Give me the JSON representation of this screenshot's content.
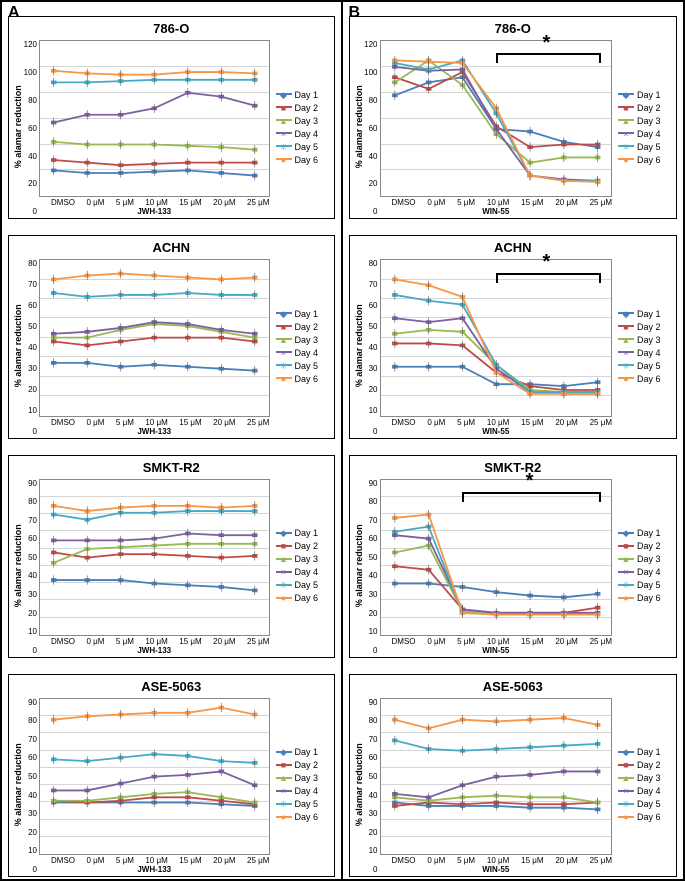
{
  "panel_labels": [
    "A",
    "B"
  ],
  "ylabel": "% alamar reduction",
  "xcats": [
    "DMSO",
    "0 μM",
    "5 μM",
    "10 μM",
    "15 μM",
    "20 μM",
    "25 μM"
  ],
  "legend_labels": [
    "Day 1",
    "Day 2",
    "Day 3",
    "Day 4",
    "Day 5",
    "Day 6"
  ],
  "colors": {
    "day1": "#4a7ebb",
    "day2": "#be4b48",
    "day3": "#98b954",
    "day4": "#7d60a0",
    "day5": "#46aac5",
    "day6": "#f79646"
  },
  "markers": {
    "day1": "◆",
    "day2": "■",
    "day3": "▲",
    "day4": "×",
    "day5": "✳",
    "day6": "●"
  },
  "columns": [
    {
      "xlabel": "JWH-133",
      "charts": [
        {
          "title": "786-O",
          "ymax": 120,
          "ystep": 20,
          "sig": null,
          "series": {
            "day1": [
              20,
              18,
              18,
              19,
              20,
              18,
              16
            ],
            "day2": [
              28,
              26,
              24,
              25,
              26,
              26,
              26
            ],
            "day3": [
              42,
              40,
              40,
              40,
              39,
              38,
              36
            ],
            "day4": [
              57,
              63,
              63,
              68,
              80,
              77,
              70
            ],
            "day5": [
              88,
              88,
              89,
              90,
              90,
              90,
              90
            ],
            "day6": [
              97,
              95,
              94,
              94,
              96,
              96,
              95
            ]
          }
        },
        {
          "title": "ACHN",
          "ymax": 80,
          "ystep": 10,
          "sig": null,
          "series": {
            "day1": [
              27,
              27,
              25,
              26,
              25,
              24,
              23
            ],
            "day2": [
              38,
              36,
              38,
              40,
              40,
              40,
              38
            ],
            "day3": [
              40,
              40,
              44,
              47,
              46,
              43,
              40
            ],
            "day4": [
              42,
              43,
              45,
              48,
              47,
              44,
              42
            ],
            "day5": [
              63,
              61,
              62,
              62,
              63,
              62,
              62
            ],
            "day6": [
              70,
              72,
              73,
              72,
              71,
              70,
              71
            ]
          }
        },
        {
          "title": "SMKT-R2",
          "ymax": 90,
          "ystep": 10,
          "sig": null,
          "series": {
            "day1": [
              32,
              32,
              32,
              30,
              29,
              28,
              26
            ],
            "day2": [
              48,
              45,
              47,
              47,
              46,
              45,
              46
            ],
            "day3": [
              42,
              50,
              51,
              52,
              53,
              53,
              53
            ],
            "day4": [
              55,
              55,
              55,
              56,
              59,
              58,
              58
            ],
            "day5": [
              70,
              67,
              71,
              71,
              72,
              72,
              72
            ],
            "day6": [
              75,
              72,
              74,
              75,
              75,
              74,
              75
            ]
          }
        },
        {
          "title": "ASE-5063",
          "ymax": 90,
          "ystep": 10,
          "sig": null,
          "series": {
            "day1": [
              30,
              30,
              30,
              30,
              30,
              29,
              28
            ],
            "day2": [
              31,
              30,
              31,
              33,
              33,
              31,
              29
            ],
            "day3": [
              31,
              31,
              33,
              35,
              36,
              33,
              30
            ],
            "day4": [
              37,
              37,
              41,
              45,
              46,
              48,
              40
            ],
            "day5": [
              55,
              54,
              56,
              58,
              57,
              54,
              53
            ],
            "day6": [
              78,
              80,
              81,
              82,
              82,
              85,
              81
            ]
          }
        }
      ]
    },
    {
      "xlabel": "WIN-55",
      "charts": [
        {
          "title": "786-O",
          "ymax": 120,
          "ystep": 20,
          "sig": {
            "from": 3,
            "to": 6
          },
          "series": {
            "day1": [
              78,
              88,
              92,
              52,
              50,
              42,
              38
            ],
            "day2": [
              92,
              83,
              96,
              54,
              38,
              40,
              40
            ],
            "day3": [
              88,
              105,
              86,
              48,
              26,
              30,
              30
            ],
            "day4": [
              100,
              97,
              98,
              52,
              16,
              13,
              12
            ],
            "day5": [
              103,
              98,
              105,
              64,
              16,
              12,
              12
            ],
            "day6": [
              105,
              104,
              103,
              68,
              16,
              12,
              11
            ]
          }
        },
        {
          "title": "ACHN",
          "ymax": 80,
          "ystep": 10,
          "sig": {
            "from": 3,
            "to": 6
          },
          "series": {
            "day1": [
              25,
              25,
              25,
              16,
              16,
              15,
              17
            ],
            "day2": [
              37,
              37,
              36,
              22,
              15,
              13,
              13
            ],
            "day3": [
              42,
              44,
              43,
              26,
              13,
              12,
              12
            ],
            "day4": [
              50,
              48,
              50,
              24,
              12,
              11,
              11
            ],
            "day5": [
              62,
              59,
              57,
              26,
              12,
              12,
              12
            ],
            "day6": [
              70,
              67,
              61,
              22,
              11,
              11,
              11
            ]
          }
        },
        {
          "title": "SMKT-R2",
          "ymax": 90,
          "ystep": 10,
          "sig": {
            "from": 2,
            "to": 6
          },
          "series": {
            "day1": [
              30,
              30,
              28,
              25,
              23,
              22,
              24
            ],
            "day2": [
              40,
              38,
              15,
              13,
              13,
              13,
              16
            ],
            "day3": [
              48,
              52,
              14,
              12,
              12,
              12,
              12
            ],
            "day4": [
              58,
              56,
              15,
              13,
              13,
              13,
              13
            ],
            "day5": [
              60,
              63,
              13,
              12,
              12,
              12,
              12
            ],
            "day6": [
              68,
              70,
              13,
              12,
              12,
              12,
              12
            ]
          }
        },
        {
          "title": "ASE-5063",
          "ymax": 90,
          "ystep": 10,
          "sig": null,
          "series": {
            "day1": [
              30,
              28,
              28,
              28,
              27,
              27,
              26
            ],
            "day2": [
              28,
              30,
              29,
              30,
              29,
              29,
              30
            ],
            "day3": [
              33,
              31,
              33,
              34,
              33,
              33,
              30
            ],
            "day4": [
              35,
              33,
              40,
              45,
              46,
              48,
              48
            ],
            "day5": [
              66,
              61,
              60,
              61,
              62,
              63,
              64
            ],
            "day6": [
              78,
              73,
              78,
              77,
              78,
              79,
              75
            ]
          }
        }
      ]
    }
  ],
  "style": {
    "line_width": 1.8,
    "marker_size": 3,
    "title_fontsize": 13,
    "axis_fontsize": 8,
    "grid_color": "#d5d5d5",
    "border_color": "#888"
  }
}
